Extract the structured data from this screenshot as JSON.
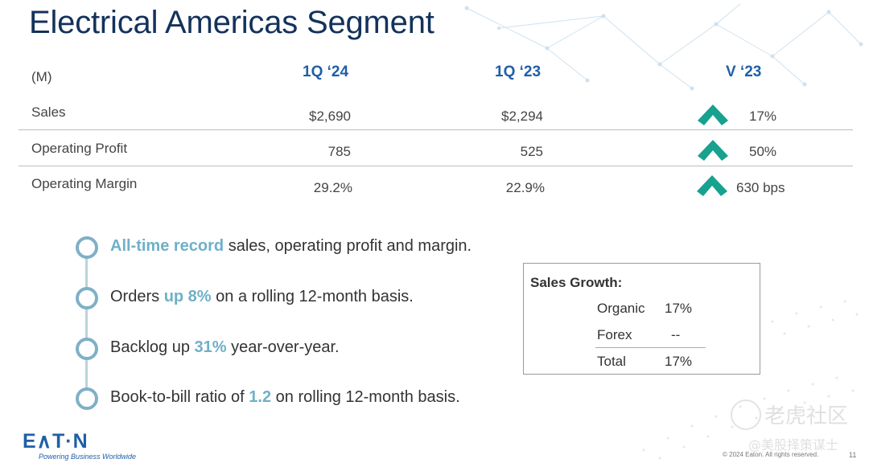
{
  "title": "Electrical Americas Segment",
  "table": {
    "unit_label": "(M)",
    "columns": [
      "1Q ‘24",
      "1Q ‘23",
      "V ‘23"
    ],
    "rows": [
      {
        "label": "Sales",
        "cur": "$2,690",
        "prev": "$2,294",
        "change": "17%",
        "direction": "up"
      },
      {
        "label": "Operating Profit",
        "cur": "785",
        "prev": "525",
        "change": "50%",
        "direction": "up"
      },
      {
        "label": "Operating Margin",
        "cur": "29.2%",
        "prev": "22.9%",
        "change": "630 bps",
        "direction": "up"
      }
    ]
  },
  "bullets": [
    {
      "highlight": "All-time record",
      "rest": " sales, operating profit and margin."
    },
    {
      "pre": "Orders ",
      "highlight": "up 8%",
      "rest": " on a rolling 12-month basis."
    },
    {
      "pre": "Backlog up ",
      "highlight": "31%",
      "rest": " year-over-year."
    },
    {
      "pre": "Book-to-bill ratio of ",
      "highlight": "1.2",
      "rest": " on rolling 12-month basis."
    }
  ],
  "sales_growth": {
    "title": "Sales Growth:",
    "items": [
      {
        "label": "Organic",
        "value": "17%"
      },
      {
        "label": "Forex",
        "value": "--"
      },
      {
        "label": "Total",
        "value": "17%"
      }
    ]
  },
  "footer": {
    "logo": "E∧T·N",
    "tagline": "Powering Business Worldwide",
    "copyright": "© 2024 Eaton. All rights reserved.",
    "page": "11"
  },
  "watermark": {
    "line1": "老虎社区",
    "line2": "@美股择策谋士"
  },
  "colors": {
    "title": "#13325b",
    "header": "#1f5fa8",
    "arrow": "#17a18f",
    "highlight": "#6fb0c8"
  },
  "icons": {
    "change": "up-chevron-icon",
    "bullet": "ring-bullet-icon"
  }
}
